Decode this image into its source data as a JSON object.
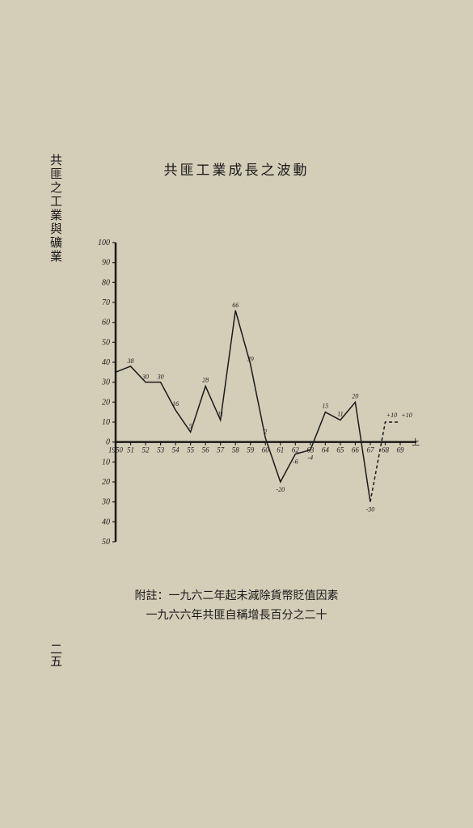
{
  "side_heading": "共匪之工業與礦業",
  "chart_title": "共匪工業成長之波動",
  "page_number": "二五",
  "note_line_1": "附註：一九六二年起未減除貨幣貶值因素",
  "note_line_2": "一九六六年共匪自稱增長百分之二十",
  "chart": {
    "type": "line",
    "background_color": "#d4cdb8",
    "ink_color": "#1a1a1a",
    "axis_width": 2.5,
    "line_width": 1.5,
    "y_axis": {
      "min": -50,
      "max": 100,
      "tick_step": 10,
      "tick_labels": [
        "100",
        "90",
        "80",
        "70",
        "60",
        "50",
        "40",
        "30",
        "20",
        "10",
        "0",
        "10",
        "20",
        "30",
        "40",
        "50"
      ],
      "label_fontsize": 10
    },
    "x_axis": {
      "start_year": 1950,
      "years": [
        "1950",
        "51",
        "52",
        "53",
        "54",
        "55",
        "56",
        "57",
        "58",
        "59",
        "60",
        "61",
        "62",
        "63",
        "64",
        "65",
        "66",
        "67",
        "68",
        "69"
      ],
      "label_fontsize": 9
    },
    "data_points": [
      {
        "x": 0,
        "y": 35,
        "label": ""
      },
      {
        "x": 1,
        "y": 38,
        "label": "38"
      },
      {
        "x": 2,
        "y": 30,
        "label": "30"
      },
      {
        "x": 3,
        "y": 30,
        "label": "30"
      },
      {
        "x": 4,
        "y": 16,
        "label": "16"
      },
      {
        "x": 5,
        "y": 5,
        "label": "5"
      },
      {
        "x": 6,
        "y": 28,
        "label": "28"
      },
      {
        "x": 7,
        "y": 11,
        "label": "11"
      },
      {
        "x": 8,
        "y": 66,
        "label": "66"
      },
      {
        "x": 9,
        "y": 39,
        "label": "39"
      },
      {
        "x": 10,
        "y": 2,
        "label": "2"
      },
      {
        "x": 11,
        "y": -20,
        "label": "-20"
      },
      {
        "x": 12,
        "y": -6,
        "label": "-6"
      },
      {
        "x": 13,
        "y": -4,
        "label": "-4"
      },
      {
        "x": 14,
        "y": 15,
        "label": "15"
      },
      {
        "x": 15,
        "y": 11,
        "label": "11"
      },
      {
        "x": 16,
        "y": 20,
        "label": "20"
      },
      {
        "x": 17,
        "y": -30,
        "label": "-30"
      },
      {
        "x": 18,
        "y": 10,
        "label": "+10"
      },
      {
        "x": 19,
        "y": 10,
        "label": "+10"
      }
    ],
    "point_label_fontsize": 8,
    "uncertain_last_marker": "上"
  }
}
